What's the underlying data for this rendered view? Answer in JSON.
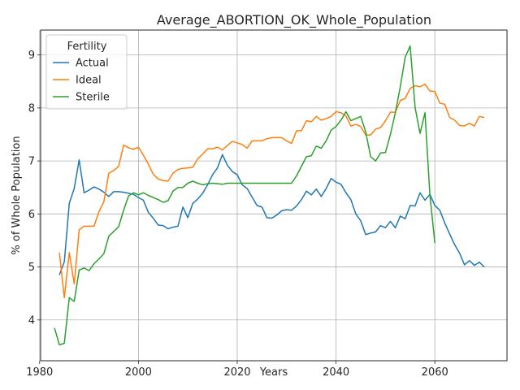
{
  "chart_data": {
    "type": "line",
    "title": "Average_ABORTION_OK_Whole_Population",
    "xlabel": "Years",
    "ylabel": "% of Whole Population",
    "xlim": [
      1980.2,
      2074.6
    ],
    "ylim": [
      3.23,
      9.47
    ],
    "xticks": [
      1980,
      2000,
      2020,
      2040,
      2060
    ],
    "yticks": [
      4,
      5,
      6,
      7,
      8,
      9
    ],
    "grid": true,
    "legend": {
      "title": "Fertility",
      "placement": "top-left"
    },
    "series": [
      {
        "name": "Actual",
        "color": "#1f77b4",
        "x": [
          1984,
          1985,
          1986,
          1987,
          1988,
          1989,
          1990,
          1991,
          1992,
          1993,
          1994,
          1995,
          1996,
          1997,
          1998,
          1999,
          2000,
          2001,
          2002,
          2003,
          2004,
          2005,
          2006,
          2007,
          2008,
          2009,
          2010,
          2011,
          2012,
          2013,
          2014,
          2015,
          2016,
          2017,
          2018,
          2019,
          2020,
          2021,
          2022,
          2023,
          2024,
          2025,
          2026,
          2027,
          2028,
          2029,
          2030,
          2031,
          2032,
          2033,
          2034,
          2035,
          2036,
          2037,
          2038,
          2039,
          2040,
          2041,
          2042,
          2043,
          2044,
          2045,
          2046,
          2047,
          2048,
          2049,
          2050,
          2051,
          2052,
          2053,
          2054,
          2055,
          2056,
          2057,
          2058,
          2059,
          2060,
          2061,
          2062,
          2063,
          2064,
          2065,
          2066,
          2067,
          2068,
          2069,
          2070
        ],
        "values": [
          4.85,
          5.1,
          6.2,
          6.48,
          7.02,
          6.4,
          6.45,
          6.51,
          6.47,
          6.41,
          6.33,
          6.42,
          6.42,
          6.41,
          6.39,
          6.37,
          6.31,
          6.26,
          6.03,
          5.92,
          5.79,
          5.78,
          5.72,
          5.75,
          5.77,
          6.13,
          5.93,
          6.2,
          6.28,
          6.39,
          6.55,
          6.74,
          6.87,
          7.12,
          6.92,
          6.8,
          6.74,
          6.55,
          6.48,
          6.32,
          6.16,
          6.13,
          5.93,
          5.92,
          5.98,
          6.06,
          6.08,
          6.07,
          6.15,
          6.27,
          6.43,
          6.36,
          6.47,
          6.33,
          6.48,
          6.67,
          6.6,
          6.56,
          6.4,
          6.27,
          6.0,
          5.87,
          5.61,
          5.64,
          5.66,
          5.78,
          5.74,
          5.86,
          5.74,
          5.96,
          5.91,
          6.16,
          6.15,
          6.4,
          6.26,
          6.37,
          6.16,
          6.07,
          5.83,
          5.62,
          5.42,
          5.26,
          5.04,
          5.12,
          5.03,
          5.09,
          5.0
        ]
      },
      {
        "name": "Ideal",
        "color": "#ff7f0e",
        "x": [
          1984,
          1985,
          1986,
          1987,
          1988,
          1989,
          1990,
          1991,
          1992,
          1993,
          1994,
          1995,
          1996,
          1997,
          1998,
          1999,
          2000,
          2001,
          2002,
          2003,
          2004,
          2005,
          2006,
          2007,
          2008,
          2009,
          2010,
          2011,
          2012,
          2013,
          2014,
          2015,
          2016,
          2017,
          2018,
          2019,
          2020,
          2021,
          2022,
          2023,
          2024,
          2025,
          2026,
          2027,
          2028,
          2029,
          2030,
          2031,
          2032,
          2033,
          2034,
          2035,
          2036,
          2037,
          2038,
          2039,
          2040,
          2041,
          2042,
          2043,
          2044,
          2045,
          2046,
          2047,
          2048,
          2049,
          2050,
          2051,
          2052,
          2053,
          2054,
          2055,
          2056,
          2057,
          2058,
          2059,
          2060,
          2061,
          2062,
          2063,
          2064,
          2065,
          2066,
          2067,
          2068,
          2069,
          2070
        ],
        "values": [
          5.27,
          4.42,
          5.27,
          4.68,
          5.7,
          5.77,
          5.77,
          5.77,
          6.04,
          6.23,
          6.77,
          6.82,
          6.9,
          7.3,
          7.25,
          7.22,
          7.26,
          7.11,
          6.94,
          6.75,
          6.66,
          6.63,
          6.62,
          6.77,
          6.84,
          6.86,
          6.87,
          6.88,
          7.04,
          7.13,
          7.23,
          7.23,
          7.26,
          7.21,
          7.29,
          7.37,
          7.34,
          7.31,
          7.24,
          7.38,
          7.38,
          7.38,
          7.42,
          7.44,
          7.44,
          7.44,
          7.38,
          7.33,
          7.57,
          7.57,
          7.76,
          7.74,
          7.84,
          7.77,
          7.8,
          7.84,
          7.93,
          7.91,
          7.85,
          7.66,
          7.69,
          7.65,
          7.49,
          7.49,
          7.6,
          7.63,
          7.76,
          7.92,
          7.92,
          8.14,
          8.18,
          8.37,
          8.42,
          8.4,
          8.45,
          8.32,
          8.31,
          8.09,
          8.07,
          7.82,
          7.77,
          7.67,
          7.66,
          7.71,
          7.66,
          7.84,
          7.82
        ]
      },
      {
        "name": "Sterile",
        "color": "#2ca02c",
        "x": [
          1983,
          1984,
          1985,
          1986,
          1987,
          1988,
          1989,
          1990,
          1991,
          1992,
          1993,
          1994,
          1995,
          1996,
          1997,
          1998,
          1999,
          2000,
          2001,
          2002,
          2003,
          2004,
          2005,
          2006,
          2007,
          2008,
          2009,
          2010,
          2011,
          2012,
          2013,
          2014,
          2015,
          2016,
          2017,
          2018,
          2019,
          2020,
          2021,
          2022,
          2023,
          2024,
          2025,
          2026,
          2027,
          2028,
          2029,
          2030,
          2031,
          2032,
          2033,
          2034,
          2035,
          2036,
          2037,
          2038,
          2039,
          2040,
          2041,
          2042,
          2043,
          2044,
          2045,
          2046,
          2047,
          2048,
          2049,
          2050,
          2051,
          2052,
          2053,
          2054,
          2055,
          2056,
          2057,
          2058,
          2059,
          2060
        ],
        "values": [
          3.85,
          3.53,
          3.56,
          4.42,
          4.35,
          4.94,
          4.98,
          4.93,
          5.06,
          5.15,
          5.25,
          5.58,
          5.67,
          5.76,
          6.07,
          6.34,
          6.4,
          6.36,
          6.4,
          6.35,
          6.31,
          6.27,
          6.22,
          6.25,
          6.43,
          6.5,
          6.5,
          6.58,
          6.62,
          6.58,
          6.55,
          6.57,
          6.58,
          6.57,
          6.56,
          6.58,
          6.58,
          6.58,
          6.58,
          6.58,
          6.58,
          6.58,
          6.58,
          6.58,
          6.58,
          6.58,
          6.58,
          6.58,
          6.58,
          6.72,
          6.9,
          7.08,
          7.1,
          7.28,
          7.24,
          7.38,
          7.58,
          7.65,
          7.77,
          7.93,
          7.76,
          7.8,
          7.84,
          7.55,
          7.08,
          7.0,
          7.15,
          7.16,
          7.5,
          7.91,
          8.4,
          8.96,
          9.17,
          8.01,
          7.52,
          7.91,
          6.35,
          5.45
        ]
      }
    ]
  }
}
